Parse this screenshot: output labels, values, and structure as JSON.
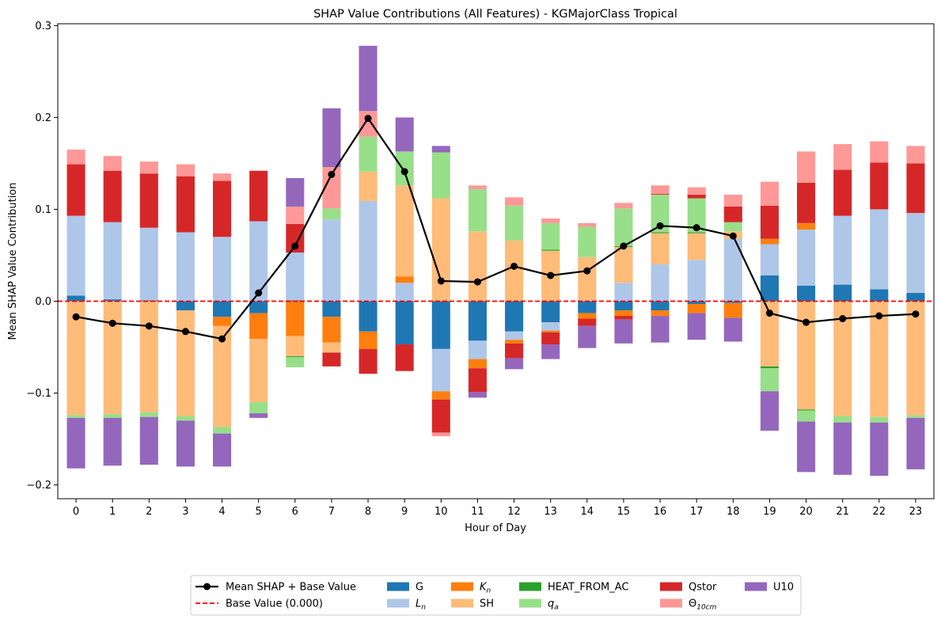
{
  "chart_data": {
    "type": "bar",
    "stacked": true,
    "title": "SHAP Value Contributions (All Features) - KGMajorClass Tropical",
    "xlabel": "Hour of Day",
    "ylabel": "Mean SHAP Value Contribution",
    "ylim": [
      -0.215,
      0.302
    ],
    "yticks": [
      "−0.2",
      "−0.1",
      "0.0",
      "0.1",
      "0.2",
      "0.3"
    ],
    "ytick_values": [
      -0.2,
      -0.1,
      0.0,
      0.1,
      0.2,
      0.3
    ],
    "categories": [
      "0",
      "1",
      "2",
      "3",
      "4",
      "5",
      "6",
      "7",
      "8",
      "9",
      "10",
      "11",
      "12",
      "13",
      "14",
      "15",
      "16",
      "17",
      "18",
      "19",
      "20",
      "21",
      "22",
      "23"
    ],
    "series": [
      {
        "name": "G",
        "color": "#1f77b4",
        "values": [
          0.006,
          0.002,
          0.001,
          -0.01,
          -0.017,
          -0.013,
          0.001,
          -0.017,
          -0.033,
          -0.047,
          -0.052,
          -0.043,
          -0.033,
          -0.023,
          -0.013,
          -0.01,
          -0.01,
          -0.003,
          -0.002,
          0.028,
          0.017,
          0.018,
          0.013,
          0.009
        ]
      },
      {
        "name": "L_n",
        "html": "<i>L</i><sub>n</sub>",
        "color": "#aec7e8",
        "values": [
          0.087,
          0.084,
          0.079,
          0.075,
          0.07,
          0.087,
          0.052,
          0.089,
          0.109,
          0.02,
          -0.046,
          -0.02,
          -0.009,
          -0.009,
          0.001,
          0.02,
          0.04,
          0.045,
          0.068,
          0.034,
          0.061,
          0.075,
          0.087,
          0.087
        ]
      },
      {
        "name": "K_n",
        "html": "<i>K</i><sub>n</sub>",
        "color": "#ff7f0e",
        "values": [
          0.0,
          0.0,
          0.0,
          0.0,
          -0.01,
          -0.028,
          -0.038,
          -0.028,
          -0.019,
          0.007,
          -0.009,
          -0.01,
          -0.004,
          -0.002,
          -0.006,
          -0.006,
          -0.006,
          -0.01,
          -0.016,
          0.006,
          0.007,
          0.0,
          0.0,
          0.0
        ]
      },
      {
        "name": "SH",
        "color": "#ffbb78",
        "values": [
          -0.124,
          -0.123,
          -0.121,
          -0.115,
          -0.11,
          -0.069,
          -0.022,
          -0.011,
          0.032,
          0.099,
          0.112,
          0.076,
          0.066,
          0.055,
          0.047,
          0.039,
          0.034,
          0.029,
          0.008,
          -0.071,
          -0.118,
          -0.125,
          -0.126,
          -0.124
        ]
      },
      {
        "name": "HEAT_FROM_AC",
        "color": "#2ca02c",
        "values": [
          0.0,
          0.0,
          0.0,
          0.0,
          0.0,
          0.0,
          -0.001,
          0.0,
          0.0,
          0.0,
          0.0,
          0.0,
          0.0,
          0.001,
          0.0,
          0.001,
          0.001,
          0.001,
          0.0,
          -0.002,
          -0.001,
          0.0,
          0.0,
          0.0
        ]
      },
      {
        "name": "q_a",
        "html": "<i>q</i><sub>a</sub>",
        "color": "#98df8a",
        "values": [
          -0.003,
          -0.004,
          -0.005,
          -0.005,
          -0.007,
          -0.012,
          -0.011,
          0.012,
          0.038,
          0.037,
          0.05,
          0.046,
          0.038,
          0.029,
          0.033,
          0.041,
          0.041,
          0.037,
          0.01,
          -0.025,
          -0.012,
          -0.007,
          -0.006,
          -0.003
        ]
      },
      {
        "name": "Qstor",
        "color": "#d62728",
        "values": [
          0.056,
          0.056,
          0.059,
          0.061,
          0.061,
          0.055,
          0.031,
          -0.015,
          -0.027,
          -0.029,
          -0.036,
          -0.026,
          -0.016,
          -0.013,
          -0.008,
          -0.004,
          0.001,
          0.004,
          0.017,
          0.036,
          0.044,
          0.05,
          0.051,
          0.054
        ]
      },
      {
        "name": "Θ_10cm",
        "html": "Θ<sub>10cm</sub>",
        "color": "#ff9896",
        "values": [
          0.016,
          0.016,
          0.013,
          0.013,
          0.008,
          0.0,
          0.019,
          0.045,
          0.028,
          0.0,
          -0.004,
          0.004,
          0.009,
          0.005,
          0.004,
          0.006,
          0.009,
          0.008,
          0.013,
          0.026,
          0.034,
          0.028,
          0.023,
          0.019
        ]
      },
      {
        "name": "U10",
        "color": "#9467bd",
        "values": [
          -0.055,
          -0.052,
          -0.052,
          -0.05,
          -0.036,
          -0.005,
          0.031,
          0.064,
          0.071,
          0.037,
          0.007,
          -0.006,
          -0.012,
          -0.016,
          -0.024,
          -0.026,
          -0.029,
          -0.029,
          -0.026,
          -0.043,
          -0.055,
          -0.057,
          -0.058,
          -0.056
        ]
      }
    ],
    "line": {
      "name": "Mean SHAP + Base Value",
      "color": "#000000",
      "values": [
        -0.017,
        -0.024,
        -0.027,
        -0.033,
        -0.041,
        0.009,
        0.06,
        0.138,
        0.199,
        0.141,
        0.022,
        0.021,
        0.038,
        0.028,
        0.033,
        0.06,
        0.082,
        0.08,
        0.071,
        -0.013,
        -0.023,
        -0.019,
        -0.016,
        -0.014
      ]
    },
    "base": {
      "name": "Base Value (0.000)",
      "value": 0.0,
      "color": "#ff0000",
      "style": "dashed"
    },
    "legend_position": "bottom-center",
    "grid": false
  }
}
